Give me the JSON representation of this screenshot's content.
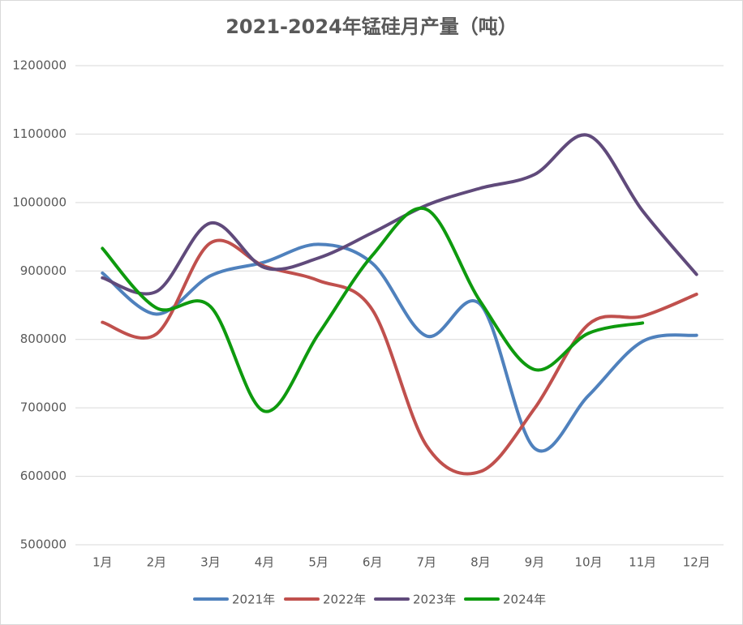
{
  "chart_data": {
    "type": "line",
    "title": "2021-2024年锰硅月产量（吨）",
    "categories": [
      "1月",
      "2月",
      "3月",
      "4月",
      "5月",
      "6月",
      "7月",
      "8月",
      "9月",
      "10月",
      "11月",
      "12月"
    ],
    "series": [
      {
        "name": "2021年",
        "color": "#4f81bd",
        "values": [
          897000,
          837000,
          893000,
          913000,
          939000,
          911000,
          805000,
          851000,
          641000,
          718000,
          797000,
          806000
        ]
      },
      {
        "name": "2022年",
        "color": "#c0504d",
        "values": [
          825000,
          808000,
          941000,
          907000,
          886000,
          843000,
          645000,
          607000,
          699000,
          822000,
          834000,
          866000
        ]
      },
      {
        "name": "2023年",
        "color": "#604a7b",
        "values": [
          890000,
          870000,
          970000,
          905000,
          919000,
          956000,
          996000,
          1021000,
          1041000,
          1098000,
          988000,
          895000
        ]
      },
      {
        "name": "2024年",
        "color": "#0e9a0e",
        "values": [
          933000,
          846000,
          848000,
          695000,
          808000,
          923000,
          990000,
          855000,
          756000,
          809000,
          824000,
          null
        ]
      }
    ],
    "ylim": [
      500000,
      1200000
    ],
    "yticks": [
      500000,
      600000,
      700000,
      800000,
      900000,
      1000000,
      1100000,
      1200000
    ],
    "grid": true,
    "smooth": true,
    "legend": "bottom"
  }
}
